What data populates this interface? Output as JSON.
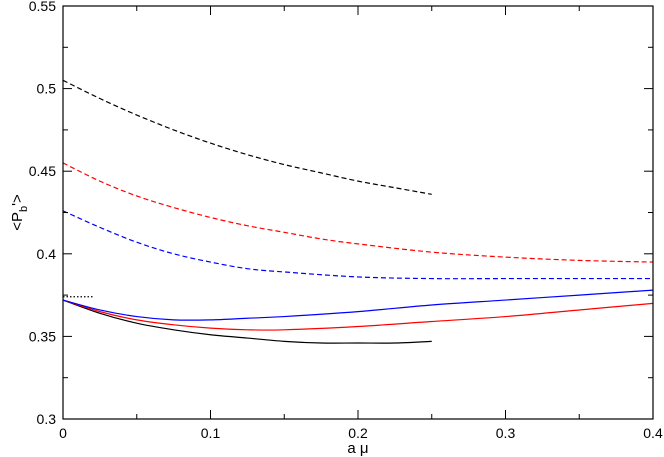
{
  "chart_data": {
    "type": "line",
    "xlabel": "a μ",
    "ylabel": "<P_b'>",
    "xlim": [
      0,
      0.4
    ],
    "ylim": [
      0.3,
      0.55
    ],
    "xticks": [
      0,
      0.1,
      0.2,
      0.3,
      0.4
    ],
    "xtick_labels": [
      "0",
      "0.1",
      "0.2",
      "0.3",
      "0.4"
    ],
    "yticks": [
      0.3,
      0.35,
      0.4,
      0.45,
      0.5,
      0.55
    ],
    "ytick_labels": [
      "0.3",
      "0.35",
      "0.4",
      "0.45",
      "0.5",
      "0.55"
    ],
    "grid": false,
    "legend": "none",
    "series": [
      {
        "color": "#000000",
        "style": "dashed",
        "x": [
          0,
          0.025,
          0.05,
          0.075,
          0.1,
          0.125,
          0.15,
          0.175,
          0.2,
          0.225,
          0.25
        ],
        "y": [
          0.505,
          0.494,
          0.484,
          0.475,
          0.467,
          0.46,
          0.454,
          0.449,
          0.444,
          0.44,
          0.436
        ]
      },
      {
        "color": "#ff0000",
        "style": "dashed",
        "x": [
          0,
          0.025,
          0.05,
          0.075,
          0.1,
          0.125,
          0.15,
          0.175,
          0.2,
          0.25,
          0.3,
          0.35,
          0.4
        ],
        "y": [
          0.455,
          0.444,
          0.435,
          0.428,
          0.422,
          0.417,
          0.413,
          0.409,
          0.406,
          0.401,
          0.398,
          0.396,
          0.395
        ]
      },
      {
        "color": "#0000ff",
        "style": "dashed",
        "x": [
          0,
          0.025,
          0.05,
          0.075,
          0.1,
          0.125,
          0.15,
          0.2,
          0.25,
          0.3,
          0.35,
          0.4
        ],
        "y": [
          0.426,
          0.416,
          0.407,
          0.4,
          0.395,
          0.391,
          0.389,
          0.386,
          0.385,
          0.385,
          0.385,
          0.385
        ]
      },
      {
        "color": "#000000",
        "style": "solid",
        "x": [
          0,
          0.025,
          0.05,
          0.075,
          0.1,
          0.125,
          0.15,
          0.175,
          0.2,
          0.225,
          0.25
        ],
        "y": [
          0.372,
          0.364,
          0.358,
          0.354,
          0.351,
          0.349,
          0.347,
          0.346,
          0.346,
          0.346,
          0.347
        ]
      },
      {
        "color": "#ff0000",
        "style": "solid",
        "x": [
          0,
          0.025,
          0.05,
          0.075,
          0.1,
          0.125,
          0.15,
          0.2,
          0.25,
          0.3,
          0.35,
          0.4
        ],
        "y": [
          0.372,
          0.365,
          0.36,
          0.357,
          0.355,
          0.354,
          0.354,
          0.356,
          0.359,
          0.362,
          0.366,
          0.37
        ]
      },
      {
        "color": "#0000ff",
        "style": "solid",
        "x": [
          0,
          0.025,
          0.05,
          0.075,
          0.1,
          0.125,
          0.15,
          0.2,
          0.25,
          0.3,
          0.35,
          0.4
        ],
        "y": [
          0.372,
          0.366,
          0.362,
          0.36,
          0.36,
          0.361,
          0.362,
          0.365,
          0.369,
          0.372,
          0.375,
          0.378
        ]
      },
      {
        "color": "#000000",
        "style": "dotted",
        "x": [
          0,
          0.02
        ],
        "y": [
          0.374,
          0.374
        ]
      }
    ]
  }
}
